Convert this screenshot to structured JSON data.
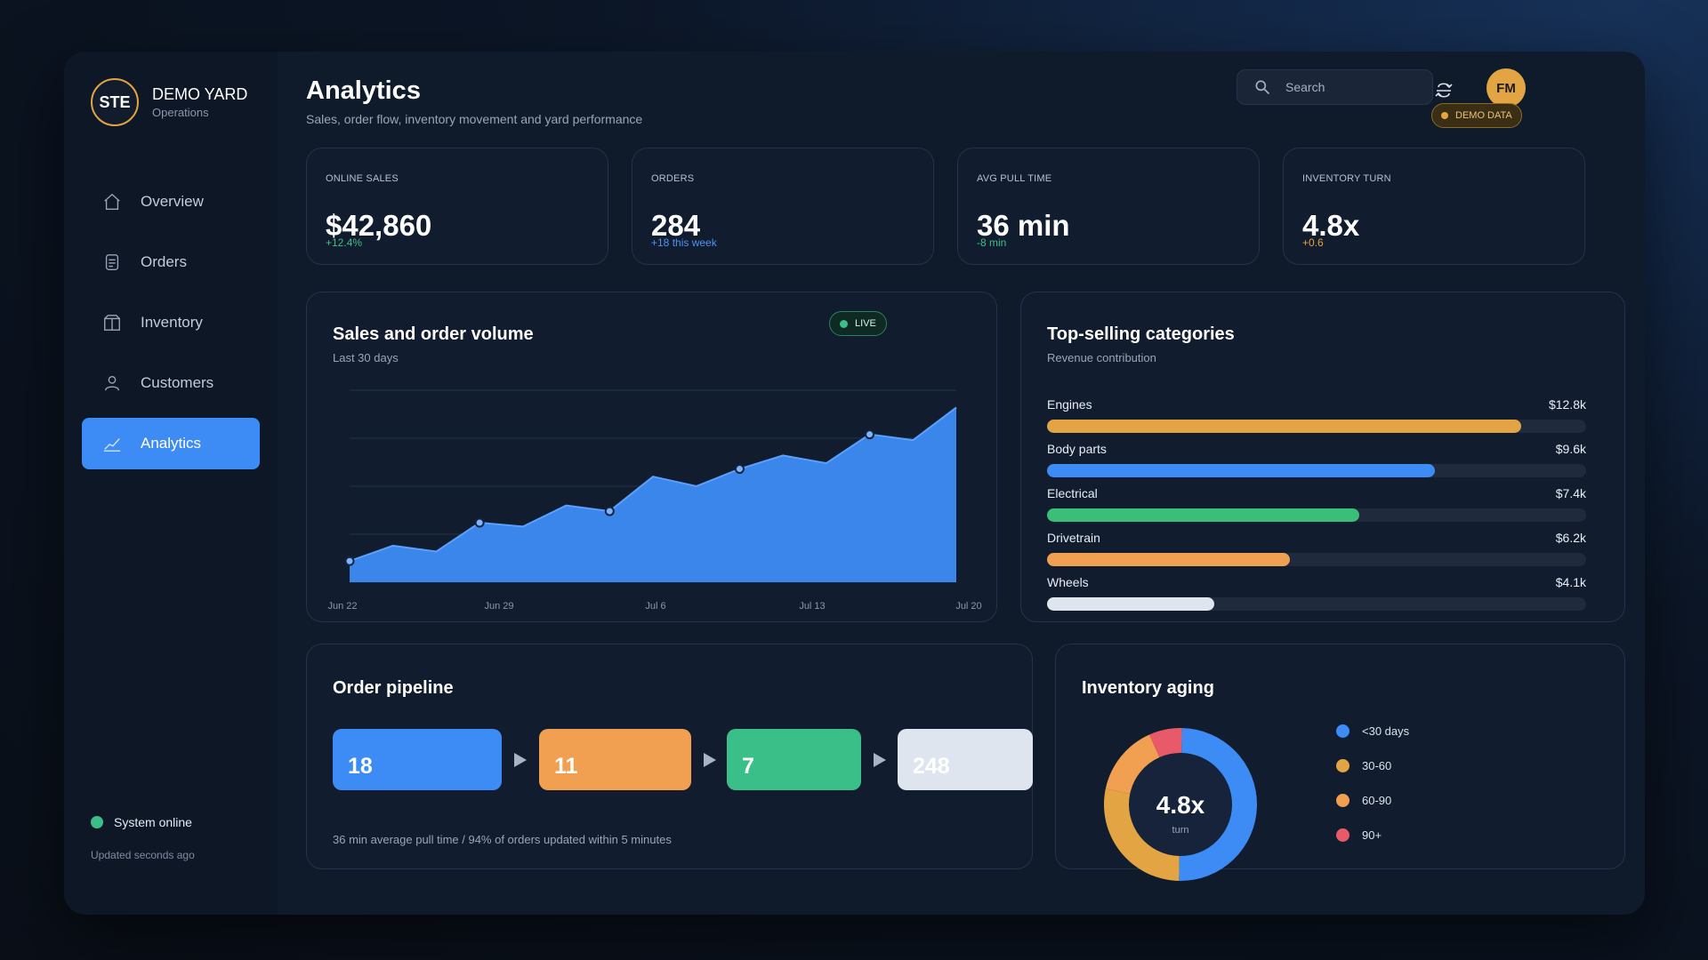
{
  "brand": {
    "logo": "STE",
    "name": "DEMO YARD",
    "sub": "Operations"
  },
  "nav": [
    {
      "label": "Overview",
      "icon": "home-icon"
    },
    {
      "label": "Orders",
      "icon": "orders-icon"
    },
    {
      "label": "Inventory",
      "icon": "box-icon"
    },
    {
      "label": "Customers",
      "icon": "user-icon"
    },
    {
      "label": "Analytics",
      "icon": "chart-icon",
      "active": true
    }
  ],
  "system": {
    "status": "System online",
    "updated": "Updated seconds ago",
    "color": "#3bbf88"
  },
  "header": {
    "title": "Analytics",
    "subtitle": "Sales, order flow, inventory movement and yard performance",
    "search_placeholder": "Search",
    "avatar": "FM",
    "badge": "DEMO DATA"
  },
  "kpis": [
    {
      "label": "ONLINE SALES",
      "value": "$42,860",
      "delta": "+12.4%",
      "delta_color": "#3bbf88"
    },
    {
      "label": "ORDERS",
      "value": "284",
      "delta": "+18 this week",
      "delta_color": "#4a93f7"
    },
    {
      "label": "AVG PULL TIME",
      "value": "36 min",
      "delta": "-8 min",
      "delta_color": "#3bbf88"
    },
    {
      "label": "INVENTORY TURN",
      "value": "4.8x",
      "delta": "+0.6",
      "delta_color": "#e3a443"
    }
  ],
  "sales_chart": {
    "title": "Sales and order volume",
    "subtitle": "Last 30 days",
    "live_label": "LIVE"
  },
  "categories": {
    "title": "Top-selling categories",
    "subtitle": "Revenue contribution",
    "items": [
      {
        "name": "Engines",
        "value": "$12.8k",
        "pct": 0.88,
        "color": "#e3a443"
      },
      {
        "name": "Body parts",
        "value": "$9.6k",
        "pct": 0.72,
        "color": "#3d8cf5"
      },
      {
        "name": "Electrical",
        "value": "$7.4k",
        "pct": 0.58,
        "color": "#3bbf78"
      },
      {
        "name": "Drivetrain",
        "value": "$6.2k",
        "pct": 0.45,
        "color": "#f0a050"
      },
      {
        "name": "Wheels",
        "value": "$4.1k",
        "pct": 0.31,
        "color": "#dfe5ee"
      }
    ]
  },
  "pipeline": {
    "title": "Order pipeline",
    "stages": [
      {
        "count": "18",
        "color": "#3d8cf5"
      },
      {
        "count": "11",
        "color": "#f0a050"
      },
      {
        "count": "7",
        "color": "#3bbf88"
      },
      {
        "count": "248",
        "color": "#dfe5ee"
      }
    ],
    "note": "36 min average pull time  /  94% of orders updated within 5 minutes"
  },
  "aging": {
    "title": "Inventory aging",
    "center_value": "4.8x",
    "center_label": "turn",
    "legend": [
      {
        "label": "<30 days",
        "color": "#3d8cf5"
      },
      {
        "label": "30-60",
        "color": "#e3a443"
      },
      {
        "label": "60-90",
        "color": "#f0a050"
      },
      {
        "label": "90+",
        "color": "#e85a6a"
      }
    ]
  },
  "chart_data": [
    {
      "type": "area",
      "title": "Sales and order volume",
      "subtitle": "Last 30 days",
      "x_ticks": [
        "Jun 22",
        "Jun 29",
        "Jul 6",
        "Jul 13",
        "Jul 20"
      ],
      "x": [
        1,
        2,
        3,
        4,
        5,
        6,
        7,
        8,
        9,
        10,
        11,
        12,
        13,
        14,
        15
      ],
      "values": [
        22,
        38,
        32,
        62,
        58,
        80,
        74,
        110,
        100,
        118,
        132,
        124,
        154,
        148,
        182
      ],
      "ylim": [
        0,
        200
      ],
      "markers_at": [
        1,
        4,
        7,
        10,
        13
      ],
      "color": "#3d8cf5",
      "grid": true
    },
    {
      "type": "pie",
      "title": "Inventory aging",
      "labels": [
        "<30 days",
        "30-60",
        "60-90",
        "90+"
      ],
      "values": [
        50,
        28,
        15,
        7
      ],
      "colors": [
        "#3d8cf5",
        "#e3a443",
        "#f0a050",
        "#e85a6a"
      ]
    }
  ]
}
